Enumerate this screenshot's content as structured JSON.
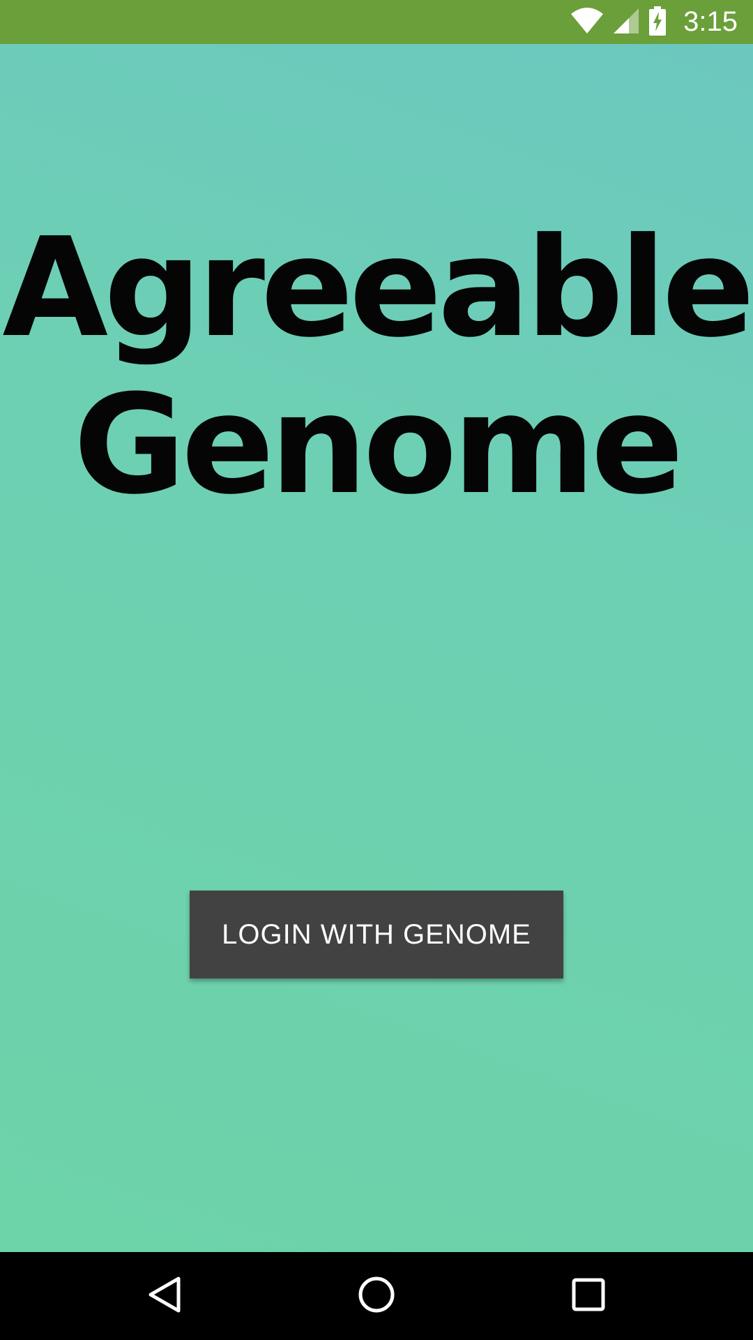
{
  "status_bar": {
    "time": "3:15",
    "icons": [
      "wifi-icon",
      "cell-signal-icon",
      "battery-charging-icon"
    ],
    "color": "#6a9f3a"
  },
  "logo": {
    "line1": "Agreeable",
    "line2": "Genome"
  },
  "login_button": {
    "label": "LOGIN WITH GENOME",
    "color": "#424242"
  },
  "nav_bar": {
    "icons": [
      "back-icon",
      "home-icon",
      "recents-icon"
    ]
  },
  "colors": {
    "background": "#6dd3ab",
    "status_bar": "#6a9f3a",
    "button": "#424242"
  }
}
